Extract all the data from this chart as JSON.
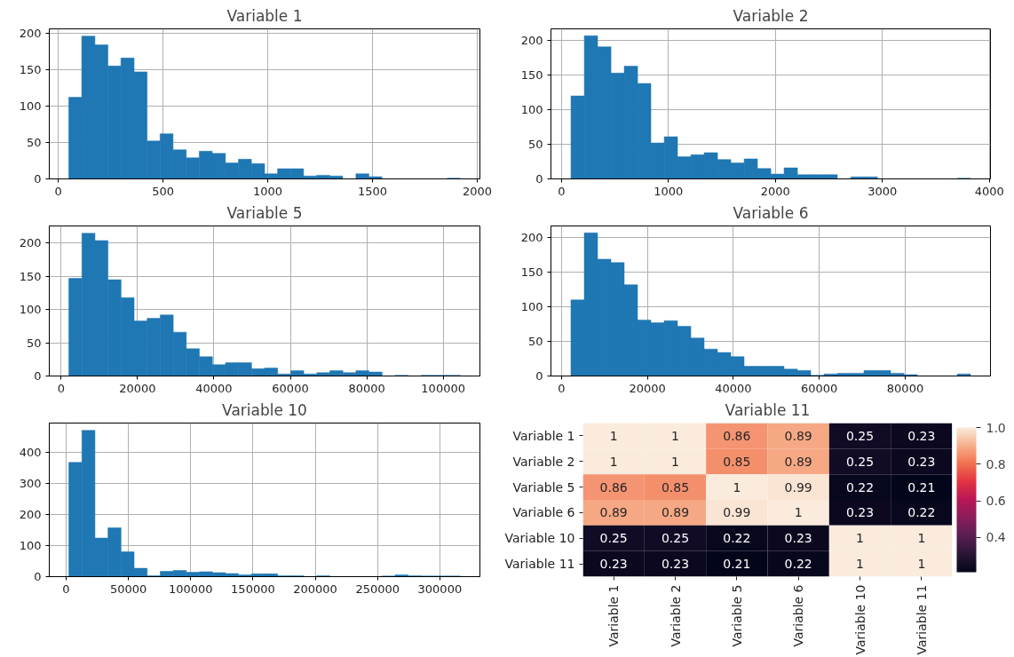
{
  "chart_data": [
    {
      "type": "histogram",
      "title": "Variable 1",
      "color": "#1f77b4",
      "grid": true,
      "bins": [
        50,
        112,
        175,
        237,
        299,
        362,
        424,
        486,
        548,
        611,
        673,
        735,
        798,
        860,
        922,
        985,
        1047,
        1109,
        1171,
        1234,
        1296,
        1358,
        1421,
        1483,
        1545,
        1608,
        1670,
        1732,
        1794,
        1857,
        1919
      ],
      "values": [
        112,
        196,
        184,
        155,
        166,
        147,
        52,
        62,
        40,
        29,
        38,
        35,
        22,
        27,
        21,
        7,
        14,
        14,
        4,
        5,
        4,
        0,
        7,
        3,
        0,
        0,
        0,
        0,
        0,
        1
      ],
      "xlim": [
        -43,
        2013
      ],
      "ylim": [
        0,
        206
      ],
      "xticks": [
        0,
        500,
        1000,
        1500,
        2000
      ],
      "yticks": [
        0,
        50,
        100,
        150,
        200
      ]
    },
    {
      "type": "histogram",
      "title": "Variable 2",
      "color": "#1f77b4",
      "grid": true,
      "bins": [
        89,
        214,
        338,
        463,
        587,
        712,
        836,
        961,
        1085,
        1210,
        1334,
        1459,
        1583,
        1708,
        1832,
        1957,
        2081,
        2206,
        2330,
        2455,
        2579,
        2704,
        2828,
        2953,
        3077,
        3202,
        3326,
        3451,
        3575,
        3700,
        3824
      ],
      "values": [
        120,
        207,
        191,
        153,
        163,
        138,
        52,
        61,
        32,
        35,
        38,
        28,
        23,
        29,
        15,
        7,
        16,
        6,
        6,
        6,
        0,
        3,
        3,
        0,
        0,
        0,
        0,
        0,
        0,
        1
      ],
      "xlim": [
        -98,
        4010
      ],
      "ylim": [
        0,
        217
      ],
      "xticks": [
        0,
        1000,
        2000,
        3000,
        4000
      ],
      "yticks": [
        0,
        50,
        100,
        150,
        200
      ]
    },
    {
      "type": "histogram",
      "title": "Variable 5",
      "color": "#1f77b4",
      "grid": true,
      "bins": [
        2038,
        5453,
        8868,
        12283,
        15698,
        19113,
        22528,
        25943,
        29358,
        32773,
        36188,
        39603,
        43018,
        46433,
        49848,
        53263,
        56678,
        60093,
        63508,
        66923,
        70338,
        73753,
        77168,
        80583,
        83998,
        87413,
        90828,
        94243,
        97658,
        101073,
        104482
      ],
      "values": [
        147,
        215,
        204,
        145,
        118,
        83,
        87,
        92,
        66,
        41,
        29,
        17,
        20,
        20,
        11,
        12,
        3,
        8,
        3,
        5,
        8,
        5,
        8,
        6,
        0,
        1,
        0,
        1,
        1,
        1
      ],
      "xlim": [
        -3084,
        109604
      ],
      "ylim": [
        0,
        226
      ],
      "xticks": [
        0,
        20000,
        40000,
        60000,
        80000,
        100000
      ],
      "yticks": [
        0,
        50,
        100,
        150,
        200
      ]
    },
    {
      "type": "histogram",
      "title": "Variable 6",
      "color": "#1f77b4",
      "grid": true,
      "bins": [
        2200,
        5300,
        8400,
        11500,
        14600,
        17700,
        20800,
        23900,
        27000,
        30100,
        33200,
        36300,
        39400,
        42500,
        45600,
        48700,
        51800,
        54900,
        58000,
        61100,
        64200,
        67300,
        70400,
        73500,
        76600,
        79700,
        82800,
        85900,
        89000,
        92100,
        95187
      ],
      "values": [
        110,
        207,
        169,
        164,
        132,
        81,
        77,
        80,
        72,
        55,
        39,
        34,
        28,
        14,
        14,
        14,
        10,
        8,
        1,
        3,
        4,
        4,
        8,
        8,
        4,
        2,
        0,
        0,
        0,
        3
      ],
      "xlim": [
        -2449,
        99837
      ],
      "ylim": [
        0,
        217
      ],
      "xticks": [
        0,
        20000,
        40000,
        60000,
        80000
      ],
      "yticks": [
        0,
        50,
        100,
        150,
        200
      ]
    },
    {
      "type": "histogram",
      "title": "Variable 10",
      "color": "#1f77b4",
      "grid": true,
      "bins": [
        2198,
        12673,
        23148,
        33623,
        44098,
        54573,
        65048,
        75523,
        85998,
        96473,
        106948,
        117423,
        127898,
        138373,
        148848,
        159323,
        169798,
        180273,
        190748,
        201223,
        211698,
        222173,
        232648,
        243123,
        253598,
        264073,
        274548,
        285023,
        295498,
        305973,
        316449
      ],
      "values": [
        367,
        470,
        124,
        157,
        80,
        27,
        3,
        17,
        20,
        14,
        16,
        13,
        10,
        6,
        9,
        9,
        3,
        3,
        0,
        3,
        0,
        0,
        0,
        0,
        2,
        6,
        3,
        2,
        2,
        2
      ],
      "xlim": [
        -13514,
        332162
      ],
      "ylim": [
        0,
        493.5
      ],
      "xticks": [
        0,
        50000,
        100000,
        150000,
        200000,
        250000,
        300000
      ],
      "yticks": [
        0,
        100,
        200,
        300,
        400
      ]
    },
    {
      "type": "heatmap",
      "title": "Variable 11",
      "data_labels": true,
      "categories": [
        "Variable 1",
        "Variable 2",
        "Variable 5",
        "Variable 6",
        "Variable 10",
        "Variable 11"
      ],
      "y_categories": [
        "Variable 1",
        "Variable 2",
        "Variable 5",
        "Variable 6",
        "Variable 10",
        "Variable 11"
      ],
      "cells": [
        [
          1,
          1,
          0.86,
          0.89,
          0.25,
          0.23
        ],
        [
          1,
          1,
          0.85,
          0.89,
          0.25,
          0.23
        ],
        [
          0.86,
          0.85,
          1,
          0.99,
          0.22,
          0.21
        ],
        [
          0.89,
          0.89,
          0.99,
          1,
          0.23,
          0.22
        ],
        [
          0.25,
          0.25,
          0.22,
          0.23,
          1,
          1
        ],
        [
          0.23,
          0.23,
          0.21,
          0.22,
          1,
          1
        ]
      ],
      "clim": [
        0.21,
        1.0
      ],
      "cticks": [
        0.4,
        0.6,
        0.8,
        {
          "value": 1.0,
          "label": "1.0"
        }
      ]
    }
  ]
}
